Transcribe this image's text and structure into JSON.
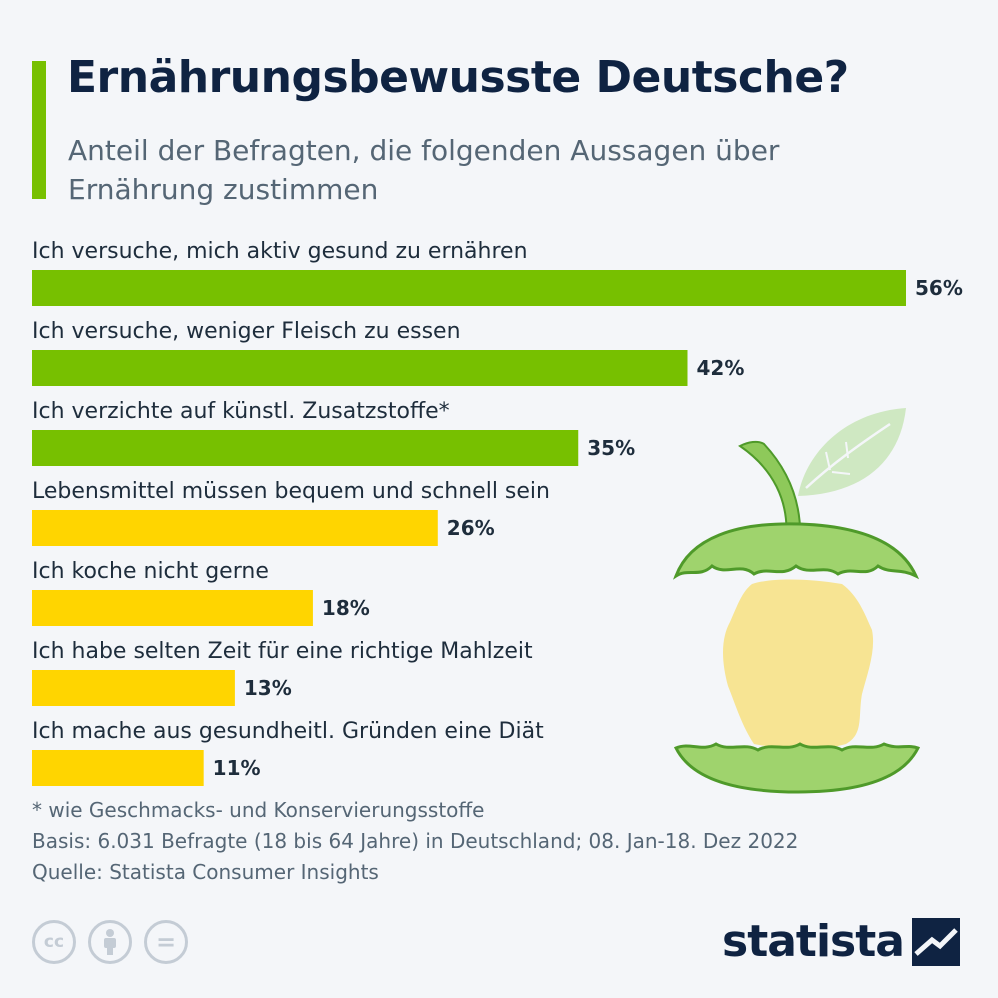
{
  "header": {
    "title": "Ernährungsbewusste Deutsche?",
    "subtitle": "Anteil der Befragten, die folgenden Aussagen über Ernährung zustimmen"
  },
  "colors": {
    "accent": "#77c000",
    "bar_green": "#77c000",
    "bar_yellow": "#ffd500",
    "text_dark": "#0f2342",
    "text_muted": "#556675",
    "background": "#f4f6f9"
  },
  "chart_data": {
    "type": "bar",
    "orientation": "horizontal",
    "categories": [
      "Ich versuche, mich aktiv gesund zu ernähren",
      "Ich versuche, weniger Fleisch zu essen",
      "Ich verzichte auf künstl. Zusatzstoffe*",
      "Lebensmittel müssen bequem und schnell sein",
      "Ich koche nicht gerne",
      "Ich habe selten Zeit für eine richtige Mahlzeit",
      "Ich mache aus gesundheitl. Gründen eine Diät"
    ],
    "values": [
      56,
      42,
      35,
      26,
      18,
      13,
      11
    ],
    "value_labels": [
      "56%",
      "42%",
      "35%",
      "26%",
      "18%",
      "13%",
      "11%"
    ],
    "bar_colors": [
      "#77c000",
      "#77c000",
      "#77c000",
      "#ffd500",
      "#ffd500",
      "#ffd500",
      "#ffd500"
    ],
    "unit": "%",
    "xlim": [
      0,
      56
    ],
    "grid": false,
    "legend": "none"
  },
  "notes": {
    "footnote": "* wie Geschmacks- und Konservierungsstoffe",
    "basis": "Basis: 6.031 Befragte (18 bis 64 Jahre) in Deutschland; 08. Jan-18. Dez 2022",
    "source": "Quelle: Statista Consumer Insights"
  },
  "footer": {
    "license_icons": [
      "cc-icon",
      "attribution-icon",
      "no-derivatives-icon"
    ],
    "cc_text": "cc",
    "nd_text": "=",
    "brand": "statista"
  },
  "illustration": {
    "icon": "apple-core-germany-map-icon"
  }
}
